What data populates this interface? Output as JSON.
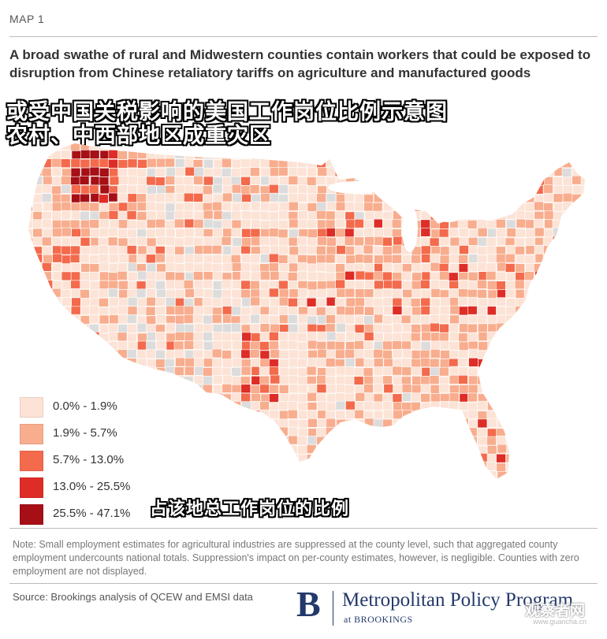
{
  "header": {
    "map_label": "MAP 1",
    "title": "A broad swathe of rural and Midwestern counties contain workers that could be exposed to disruption from Chinese retaliatory tariffs on agriculture and manufactured goods",
    "cn_title_line1": "或受中国关税影响的美国工作岗位比例示意图",
    "cn_title_line2": "农村、中西部地区成重灾区"
  },
  "legend": {
    "items": [
      {
        "label": "0.0% - 1.9%",
        "color": "#fce3d6"
      },
      {
        "label": "1.9% - 5.7%",
        "color": "#f8ad8e"
      },
      {
        "label": "5.7% - 13.0%",
        "color": "#f36a4c"
      },
      {
        "label": "13.0% - 25.5%",
        "color": "#de2c26"
      },
      {
        "label": "25.5% - 47.1%",
        "color": "#a50f15"
      }
    ],
    "cn_caption": "占该地总工作岗位的比例"
  },
  "map": {
    "no_data_color": "#dcdcdc",
    "border_color": "#ffffff"
  },
  "footer": {
    "note": "Note: Small employment estimates for agricultural industries are suppressed at the county level, such that aggregated county employment undercounts national totals. Suppression's impact on per-county estimates, however, is negligible. Counties with zero employment are not displayed.",
    "source": "Source: Brookings analysis of QCEW and EMSI data",
    "logo_letter": "B",
    "logo_title": "Metropolitan Policy Program",
    "logo_sub": "at BROOKINGS",
    "watermark_cn": "观察者网",
    "watermark_url": "www.guancha.cn"
  }
}
